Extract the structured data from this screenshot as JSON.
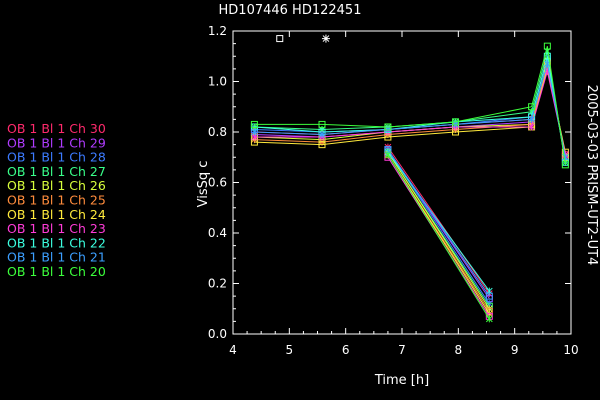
{
  "chart_data": {
    "type": "line",
    "title": "HD107446 HD122451",
    "side_label": "2005-03-03 PRISM-UT2-UT4",
    "xlabel": "Time [h]",
    "ylabel": "VisSq c",
    "xlim": [
      4,
      10
    ],
    "ylim": [
      0,
      1.2
    ],
    "x_ticks": [
      4,
      5,
      6,
      7,
      8,
      9,
      10
    ],
    "y_ticks": [
      0.0,
      0.2,
      0.4,
      0.6,
      0.8,
      1.0,
      1.2
    ],
    "y_tick_labels": [
      "0.0",
      "0.2",
      "0.4",
      "0.6",
      "0.8",
      "1.0",
      "1.2"
    ],
    "grid": false,
    "legend_position": "left",
    "x": [
      4.38,
      5.58,
      6.75,
      7.95,
      9.3,
      9.58,
      9.9
    ],
    "series": [
      {
        "name": "OB 1 Bl 1 Ch 30",
        "color": "#ff2a6d",
        "values": [
          0.8,
          0.79,
          0.81,
          0.83,
          0.85,
          1.06,
          0.71
        ]
      },
      {
        "name": "OB 1 Bl 1 Ch 29",
        "color": "#b03cff",
        "values": [
          0.79,
          0.78,
          0.8,
          0.82,
          0.84,
          1.07,
          0.7
        ]
      },
      {
        "name": "OB 1 Bl 1 Ch 28",
        "color": "#3c7bff",
        "values": [
          0.81,
          0.8,
          0.81,
          0.83,
          0.86,
          1.09,
          0.69
        ]
      },
      {
        "name": "OB 1 Bl 1 Ch 27",
        "color": "#39ff8a",
        "values": [
          0.82,
          0.81,
          0.82,
          0.84,
          0.88,
          1.12,
          0.68
        ]
      },
      {
        "name": "OB 1 Bl 1 Ch 26",
        "color": "#d8ff3c",
        "values": [
          0.78,
          0.77,
          0.8,
          0.82,
          0.83,
          1.08,
          0.7
        ]
      },
      {
        "name": "OB 1 Bl 1 Ch 25",
        "color": "#ff8c3c",
        "values": [
          0.77,
          0.76,
          0.79,
          0.81,
          0.83,
          1.06,
          0.71
        ]
      },
      {
        "name": "OB 1 Bl 1 Ch 24",
        "color": "#ffea3c",
        "values": [
          0.76,
          0.75,
          0.78,
          0.8,
          0.82,
          1.05,
          0.72
        ]
      },
      {
        "name": "OB 1 Bl 1 Ch 23",
        "color": "#ff3cd8",
        "values": [
          0.78,
          0.78,
          0.8,
          0.82,
          0.82,
          1.04,
          0.71
        ]
      },
      {
        "name": "OB 1 Bl 1 Ch 22",
        "color": "#3cffe0",
        "values": [
          0.82,
          0.8,
          0.81,
          0.84,
          0.86,
          1.1,
          0.68
        ]
      },
      {
        "name": "OB 1 Bl 1 Ch 21",
        "color": "#3c9fff",
        "values": [
          0.8,
          0.79,
          0.81,
          0.83,
          0.85,
          1.07,
          0.7
        ]
      },
      {
        "name": "OB 1 Bl 1 Ch 20",
        "color": "#3cff3c",
        "values": [
          0.83,
          0.83,
          0.82,
          0.84,
          0.9,
          1.14,
          0.67
        ]
      }
    ],
    "drop_series": {
      "x": [
        6.75,
        8.55
      ],
      "values": [
        [
          0.74,
          0.16
        ],
        [
          0.73,
          0.14
        ],
        [
          0.73,
          0.12
        ],
        [
          0.72,
          0.11
        ],
        [
          0.72,
          0.1
        ],
        [
          0.71,
          0.09
        ],
        [
          0.71,
          0.08
        ],
        [
          0.7,
          0.07
        ],
        [
          0.72,
          0.17
        ],
        [
          0.73,
          0.15
        ],
        [
          0.71,
          0.06
        ]
      ]
    },
    "calibrator_markers": [
      {
        "symbol": "square",
        "x": 4.83,
        "y": 1.17
      },
      {
        "symbol": "asterisk",
        "x": 5.65,
        "y": 1.17
      }
    ]
  }
}
